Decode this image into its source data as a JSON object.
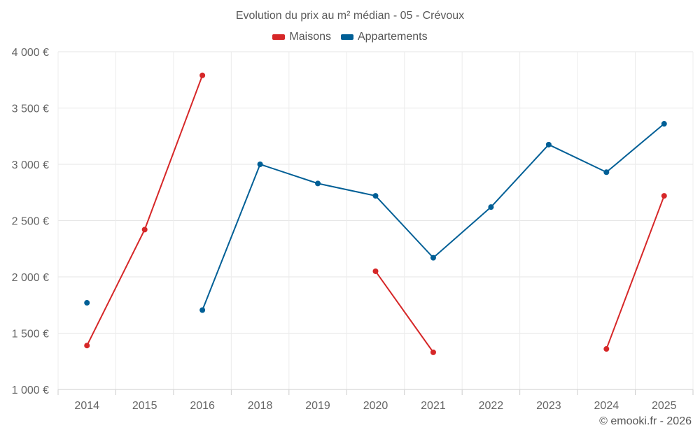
{
  "chart_data": {
    "type": "line",
    "title": "Evolution du prix au m² médian - 05 - Crévoux",
    "categories": [
      "2014",
      "2015",
      "2016",
      "2018",
      "2019",
      "2020",
      "2021",
      "2022",
      "2023",
      "2024",
      "2025"
    ],
    "y_ticks": [
      "1 000 €",
      "1 500 €",
      "2 000 €",
      "2 500 €",
      "3 000 €",
      "3 500 €",
      "4 000 €"
    ],
    "ylim": [
      1000,
      4000
    ],
    "grid": true,
    "legend_position": "top",
    "series": [
      {
        "name": "Maisons",
        "color": "#d62728",
        "values": [
          1390,
          2420,
          3790,
          null,
          null,
          2050,
          1330,
          null,
          null,
          1360,
          2720
        ]
      },
      {
        "name": "Appartements",
        "color": "#005f96",
        "values": [
          1770,
          null,
          1705,
          3000,
          2830,
          2720,
          2170,
          2620,
          3175,
          2930,
          3360
        ]
      }
    ]
  },
  "credit": "© emooki.fr - 2026"
}
